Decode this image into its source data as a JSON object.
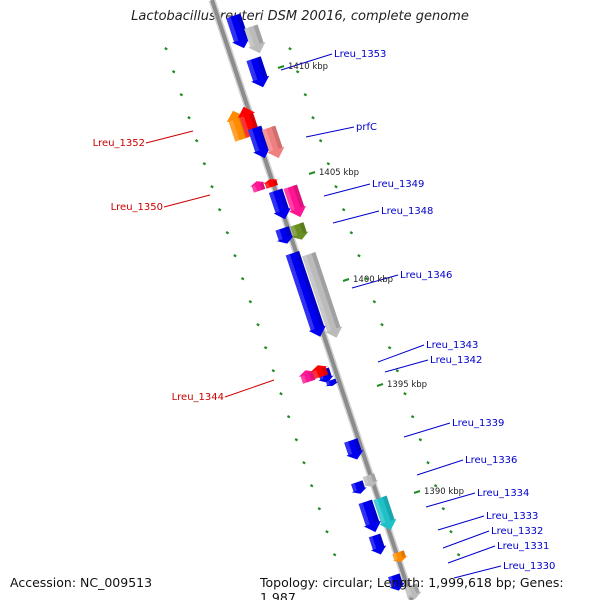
{
  "title": "Lactobacillus reuteri DSM 20016, complete genome",
  "footer": {
    "accession": "Accession: NC_009513",
    "summary": "Topology: circular; Length: 1,999,618 bp; Genes: 1,987"
  },
  "colors": {
    "axis": "#8c8c8c",
    "label_plus": "#0000cc",
    "label_minus": "#cc0000",
    "tick": "#228b22",
    "cds": "#0000ee",
    "trna": "#ff1493",
    "rrna": "#ff0000",
    "other": "#bbbbbb"
  },
  "scale_marks": [
    "1410 kbp",
    "1405 kbp",
    "1400 kbp",
    "1395 kbp",
    "1390 kbp"
  ],
  "gene_labels": {
    "plus": [
      "Lreu_1353",
      "prfC",
      "Lreu_1349",
      "Lreu_1348",
      "Lreu_1346",
      "Lreu_1343",
      "Lreu_1342",
      "Lreu_1339",
      "Lreu_1336",
      "Lreu_1334",
      "Lreu_1333",
      "Lreu_1332",
      "Lreu_1331",
      "Lreu_1330"
    ],
    "minus": [
      "Lreu_1352",
      "Lreu_1350",
      "Lreu_1344"
    ]
  }
}
